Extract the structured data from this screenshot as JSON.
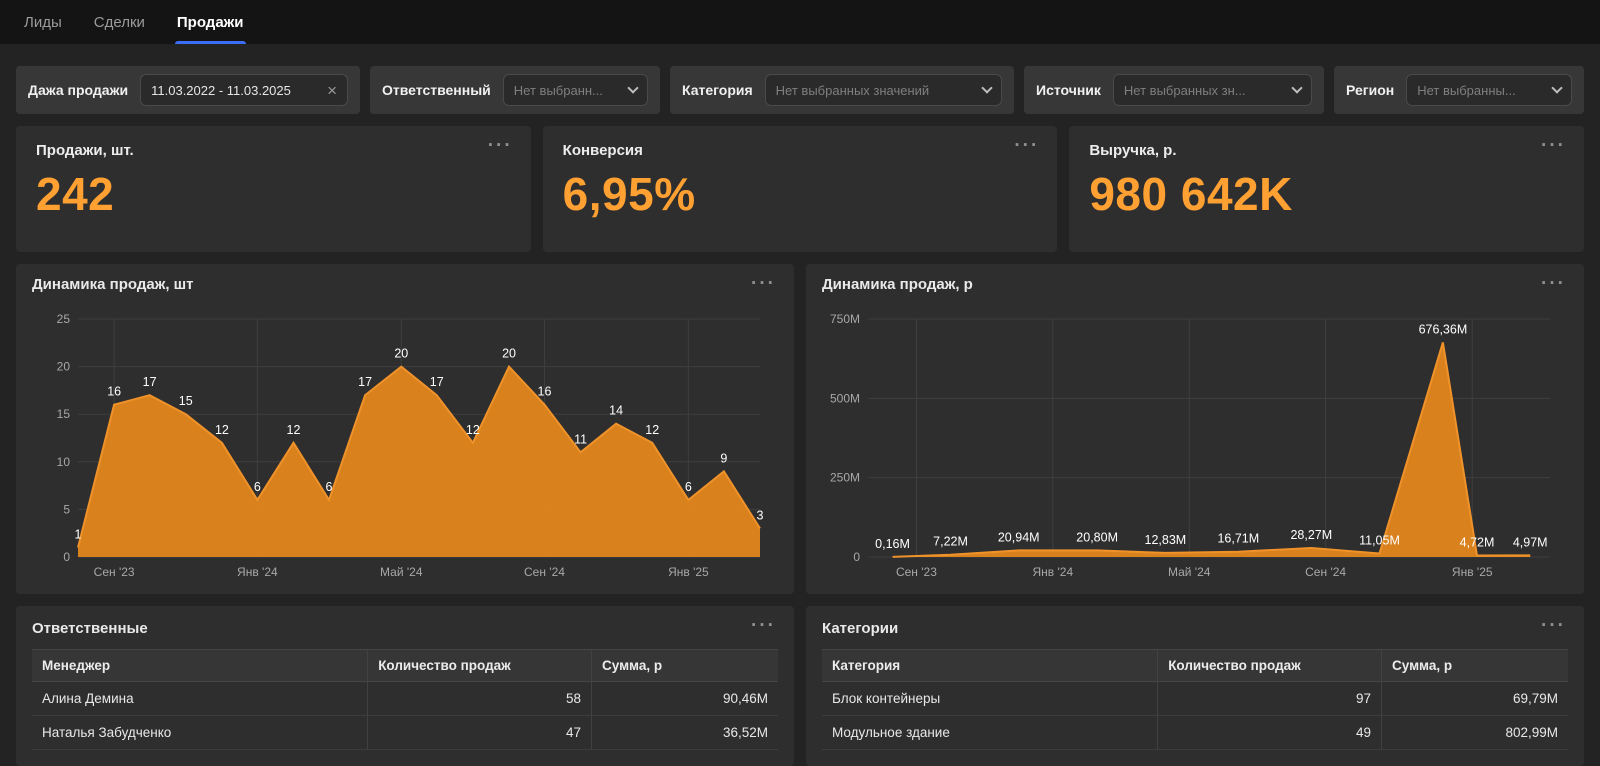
{
  "colors": {
    "kpi_value": "#ffa033",
    "tab_underline": "#3b6ef6",
    "chart_fill": "#e2861c",
    "chart_stroke": "#f0922a",
    "grid": "#3f3f3f",
    "axis_text": "#a8a8a8",
    "point_label": "#ffffff"
  },
  "icons": {
    "close": "×",
    "menu": "···"
  },
  "tabs": [
    {
      "id": "leads",
      "label": "Лиды",
      "active": false
    },
    {
      "id": "deals",
      "label": "Сделки",
      "active": false
    },
    {
      "id": "sales",
      "label": "Продажи",
      "active": true
    }
  ],
  "filters": [
    {
      "id": "sale-date",
      "type": "date",
      "label": "Дажа продажи",
      "value": "11.03.2022 - 11.03.2025"
    },
    {
      "id": "responsible",
      "type": "select",
      "label": "Ответственный",
      "placeholder": "Нет выбранн..."
    },
    {
      "id": "category",
      "type": "select",
      "label": "Категория",
      "placeholder": "Нет выбранных значений"
    },
    {
      "id": "source",
      "type": "select",
      "label": "Источник",
      "placeholder": "Нет выбранных зн..."
    },
    {
      "id": "region",
      "type": "select",
      "label": "Регион",
      "placeholder": "Нет выбранны..."
    }
  ],
  "kpis": [
    {
      "id": "sales-count",
      "title": "Продажи, шт.",
      "value": "242"
    },
    {
      "id": "conversion",
      "title": "Конверсия",
      "value": "6,95%"
    },
    {
      "id": "revenue",
      "title": "Выручка, р.",
      "value": "980 642K"
    }
  ],
  "chart_data": [
    {
      "id": "sales-dynamics-count",
      "type": "area",
      "title": "Динамика продаж, шт",
      "ylim": [
        0,
        25
      ],
      "y_max": 25,
      "grid": true,
      "y_ticks": [
        {
          "value": 0,
          "label": "0"
        },
        {
          "value": 5,
          "label": "5"
        },
        {
          "value": 10,
          "label": "10"
        },
        {
          "value": 15,
          "label": "15"
        },
        {
          "value": 20,
          "label": "20"
        },
        {
          "value": 25,
          "label": "25"
        }
      ],
      "x_ticks": [
        {
          "pos": 0.053,
          "label": "Сен '23"
        },
        {
          "pos": 0.263,
          "label": "Янв '24"
        },
        {
          "pos": 0.474,
          "label": "Май '24"
        },
        {
          "pos": 0.684,
          "label": "Сен '24"
        },
        {
          "pos": 0.895,
          "label": "Янв '25"
        }
      ],
      "points": [
        {
          "pos": 0,
          "value": 1,
          "label": "1"
        },
        {
          "pos": 0.053,
          "value": 16,
          "label": "16"
        },
        {
          "pos": 0.105,
          "value": 17,
          "label": "17"
        },
        {
          "pos": 0.158,
          "value": 15,
          "label": "15"
        },
        {
          "pos": 0.211,
          "value": 12,
          "label": "12"
        },
        {
          "pos": 0.263,
          "value": 6,
          "label": "6"
        },
        {
          "pos": 0.316,
          "value": 12,
          "label": "12"
        },
        {
          "pos": 0.368,
          "value": 6,
          "label": "6"
        },
        {
          "pos": 0.421,
          "value": 17,
          "label": "17"
        },
        {
          "pos": 0.474,
          "value": 20,
          "label": "20"
        },
        {
          "pos": 0.526,
          "value": 17,
          "label": "17"
        },
        {
          "pos": 0.579,
          "value": 12,
          "label": "12"
        },
        {
          "pos": 0.632,
          "value": 20,
          "label": "20"
        },
        {
          "pos": 0.684,
          "value": 16,
          "label": "16"
        },
        {
          "pos": 0.737,
          "value": 11,
          "label": "11"
        },
        {
          "pos": 0.789,
          "value": 14,
          "label": "14"
        },
        {
          "pos": 0.842,
          "value": 12,
          "label": "12"
        },
        {
          "pos": 0.895,
          "value": 6,
          "label": "6"
        },
        {
          "pos": 0.947,
          "value": 9,
          "label": "9"
        },
        {
          "pos": 1,
          "value": 3,
          "label": "3"
        }
      ]
    },
    {
      "id": "sales-dynamics-revenue",
      "type": "area",
      "title": "Динамика продаж, р",
      "ylim": [
        0,
        750
      ],
      "y_max": 750,
      "y_unit": "M",
      "grid": true,
      "y_ticks": [
        {
          "value": 0,
          "label": "0"
        },
        {
          "value": 250,
          "label": "250M"
        },
        {
          "value": 500,
          "label": "500M"
        },
        {
          "value": 750,
          "label": "750M"
        }
      ],
      "x_ticks": [
        {
          "pos": 0.071,
          "label": "Сен '23"
        },
        {
          "pos": 0.271,
          "label": "Янв '24"
        },
        {
          "pos": 0.471,
          "label": "Май '24"
        },
        {
          "pos": 0.671,
          "label": "Сен '24"
        },
        {
          "pos": 0.886,
          "label": "Янв '25"
        }
      ],
      "points": [
        {
          "pos": 0.036,
          "value": 0.16,
          "label": "0,16M"
        },
        {
          "pos": 0.121,
          "value": 7.22,
          "label": "7,22M"
        },
        {
          "pos": 0.221,
          "value": 20.94,
          "label": "20,94M"
        },
        {
          "pos": 0.336,
          "value": 20.8,
          "label": "20,80M"
        },
        {
          "pos": 0.436,
          "value": 12.83,
          "label": "12,83M"
        },
        {
          "pos": 0.543,
          "value": 16.71,
          "label": "16,71M"
        },
        {
          "pos": 0.65,
          "value": 28.27,
          "label": "28,27M"
        },
        {
          "pos": 0.75,
          "value": 11.05,
          "label": "11,05M"
        },
        {
          "pos": 0.843,
          "value": 676.36,
          "label": "676,36M"
        },
        {
          "pos": 0.893,
          "value": 4.72,
          "label": "4,72M"
        },
        {
          "pos": 0.971,
          "value": 4.97,
          "label": "4,97M"
        }
      ]
    }
  ],
  "tables": [
    {
      "id": "managers",
      "title": "Ответственные",
      "columns": [
        "Менеджер",
        "Количество продаж",
        "Сумма, р"
      ],
      "rows": [
        [
          "Алина Демина",
          "58",
          "90,46M"
        ],
        [
          "Наталья Забудченко",
          "47",
          "36,52M"
        ]
      ]
    },
    {
      "id": "categories",
      "title": "Категории",
      "columns": [
        "Категория",
        "Количество продаж",
        "Сумма, р"
      ],
      "rows": [
        [
          "Блок контейнеры",
          "97",
          "69,79M"
        ],
        [
          "Модульное здание",
          "49",
          "802,99M"
        ]
      ]
    }
  ]
}
